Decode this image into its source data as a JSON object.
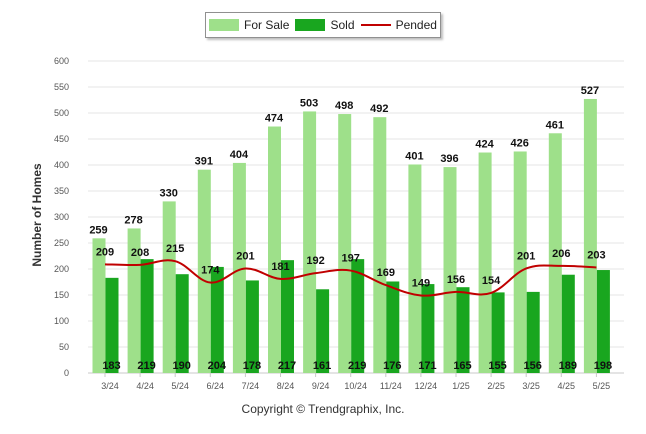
{
  "chart_data": {
    "type": "bar",
    "ylabel": "Number of Homes",
    "ylim": [
      0,
      600
    ],
    "yticks": [
      0,
      50,
      100,
      150,
      200,
      250,
      300,
      350,
      400,
      450,
      500,
      550,
      600
    ],
    "grid": true,
    "legend_placement": "top-center",
    "categories": [
      "3/24",
      "4/24",
      "5/24",
      "6/24",
      "7/24",
      "8/24",
      "9/24",
      "10/24",
      "11/24",
      "12/24",
      "1/25",
      "2/25",
      "3/25",
      "4/25",
      "5/25"
    ],
    "series": [
      {
        "name": "For Sale",
        "kind": "bar",
        "color": "#9ee08a",
        "values": [
          259,
          278,
          330,
          391,
          404,
          474,
          503,
          498,
          492,
          401,
          396,
          424,
          426,
          461,
          527
        ]
      },
      {
        "name": "Sold",
        "kind": "bar",
        "color": "#19a61f",
        "values": [
          183,
          219,
          190,
          204,
          178,
          217,
          161,
          219,
          176,
          171,
          165,
          155,
          156,
          189,
          198
        ]
      },
      {
        "name": "Pended",
        "kind": "line",
        "color": "#c00000",
        "values": [
          209,
          208,
          215,
          174,
          201,
          181,
          192,
          197,
          169,
          149,
          156,
          154,
          201,
          206,
          203
        ]
      }
    ]
  },
  "footer": {
    "copyright": "Copyright © Trendgraphix, Inc."
  }
}
